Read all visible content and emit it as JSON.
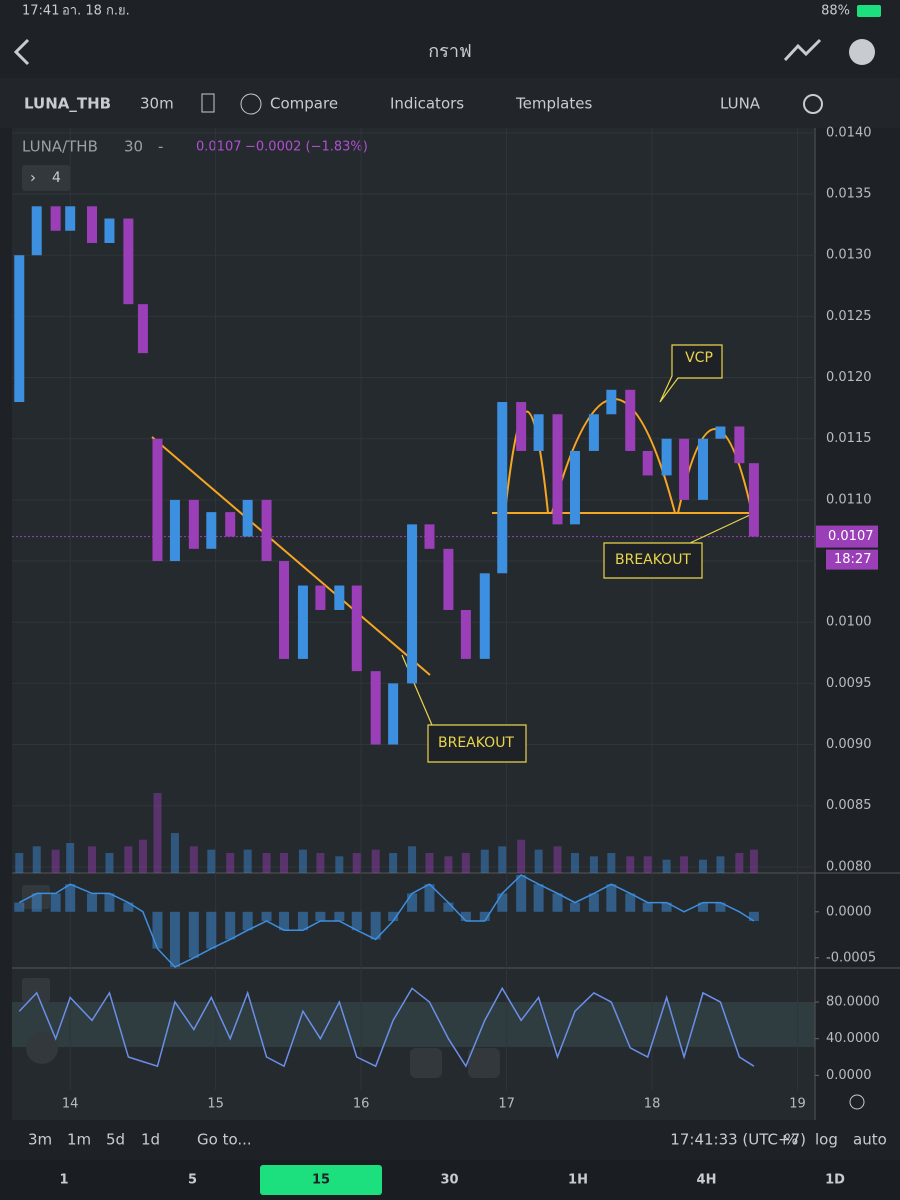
{
  "status_bar": {
    "time": "17:41",
    "date": "อา. 18 ก.ย.",
    "battery": "88%"
  },
  "nav": {
    "title": "กราฟ"
  },
  "toolbar": {
    "symbol": "LUNA_THB",
    "interval": "30m",
    "compare": "Compare",
    "indicators": "Indicators",
    "templates": "Templates",
    "layout": "LUNA"
  },
  "legend": {
    "symbol": "LUNA/THB",
    "interval": "30",
    "dash": "-",
    "price": "0.0107",
    "change": "−0.0002 (−1.83%)",
    "collapsed_count": "4"
  },
  "chart": {
    "type": "candlestick",
    "x": [
      13.65,
      13.77,
      13.9,
      14.0,
      14.15,
      14.27,
      14.4,
      14.5,
      14.6,
      14.72,
      14.85,
      14.97,
      15.1,
      15.22,
      15.35,
      15.47,
      15.6,
      15.72,
      15.85,
      15.97,
      16.1,
      16.22,
      16.35,
      16.47,
      16.6,
      16.72,
      16.85,
      16.97,
      17.1,
      17.22,
      17.35,
      17.47,
      17.6,
      17.72,
      17.85,
      17.97,
      18.1,
      18.22,
      18.35,
      18.47,
      18.6,
      18.7
    ],
    "open": [
      0.0118,
      0.013,
      0.0134,
      0.0132,
      0.0134,
      0.0131,
      0.0133,
      0.0126,
      0.0115,
      0.0105,
      0.011,
      0.0106,
      0.0109,
      0.0107,
      0.011,
      0.0105,
      0.0097,
      0.0103,
      0.0101,
      0.0103,
      0.0096,
      0.009,
      0.0095,
      0.0108,
      0.0106,
      0.0101,
      0.0097,
      0.0104,
      0.0118,
      0.0114,
      0.0117,
      0.0108,
      0.0114,
      0.0117,
      0.0119,
      0.0114,
      0.0112,
      0.0115,
      0.011,
      0.0115,
      0.0116,
      0.0113
    ],
    "close": [
      0.013,
      0.0134,
      0.0132,
      0.0134,
      0.0131,
      0.0133,
      0.0126,
      0.0122,
      0.0105,
      0.011,
      0.0106,
      0.0109,
      0.0107,
      0.011,
      0.0105,
      0.0097,
      0.0103,
      0.0101,
      0.0103,
      0.0096,
      0.009,
      0.0095,
      0.0108,
      0.0106,
      0.0101,
      0.0097,
      0.0104,
      0.0118,
      0.0114,
      0.0117,
      0.0108,
      0.0114,
      0.0117,
      0.0119,
      0.0114,
      0.0112,
      0.0115,
      0.011,
      0.0115,
      0.0116,
      0.0113,
      0.0107
    ],
    "up_color": "#3d8fe0",
    "down_color": "#9b3fb8",
    "xlim": [
      13.6,
      19.12
    ],
    "xticks": [
      14,
      15,
      16,
      17,
      18,
      19
    ],
    "ylim": [
      0.00795,
      0.01404
    ],
    "yticks": [
      {
        "value": 0.014,
        "label": "0.0140"
      },
      {
        "value": 0.0135,
        "label": "0.0135"
      },
      {
        "value": 0.013,
        "label": "0.0130"
      },
      {
        "value": 0.0125,
        "label": "0.0125"
      },
      {
        "value": 0.012,
        "label": "0.0120"
      },
      {
        "value": 0.0115,
        "label": "0.0115"
      },
      {
        "value": 0.011,
        "label": "0.0110"
      },
      {
        "value": 0.0105,
        "label": "0.0105"
      },
      {
        "value": 0.01,
        "label": "0.0100"
      },
      {
        "value": 0.0095,
        "label": "0.0095"
      },
      {
        "value": 0.009,
        "label": "0.0090"
      },
      {
        "value": 0.0085,
        "label": "0.0085"
      },
      {
        "value": 0.008,
        "label": "0.0080"
      }
    ],
    "last_price": {
      "value": 0.0107,
      "label": "0.0107"
    },
    "countdown": "18:27",
    "volume": [
      30,
      40,
      35,
      45,
      40,
      30,
      40,
      50,
      120,
      60,
      40,
      35,
      30,
      35,
      30,
      30,
      35,
      30,
      25,
      30,
      35,
      30,
      40,
      30,
      25,
      30,
      35,
      40,
      50,
      35,
      40,
      30,
      25,
      30,
      25,
      25,
      20,
      25,
      20,
      25,
      30,
      35
    ],
    "macd": {
      "values": [
        0.0001,
        0.0002,
        0.0002,
        0.0003,
        0.0002,
        0.0002,
        0.0001,
        0,
        -0.0004,
        -0.0006,
        -0.0005,
        -0.0004,
        -0.0003,
        -0.0002,
        -0.0001,
        -0.0002,
        -0.0002,
        -0.0001,
        -0.0001,
        -0.0002,
        -0.0003,
        -0.0001,
        0.0002,
        0.0003,
        0.0001,
        -0.0001,
        -0.0001,
        0.0002,
        0.0004,
        0.0003,
        0.0002,
        0.0001,
        0.0002,
        0.0003,
        0.0002,
        0.0001,
        0.0001,
        0,
        0.0001,
        0.0001,
        0,
        -0.0001
      ],
      "ylim": [
        -0.0006,
        0.0004
      ],
      "yticks": [
        {
          "value": 0,
          "label": "0.0000"
        },
        {
          "value": -0.0005,
          "label": "-0.0005"
        }
      ]
    },
    "stoch": {
      "values": [
        70,
        90,
        40,
        85,
        60,
        90,
        20,
        15,
        10,
        80,
        50,
        85,
        40,
        90,
        20,
        10,
        70,
        40,
        80,
        20,
        10,
        60,
        95,
        80,
        40,
        10,
        60,
        95,
        60,
        85,
        20,
        70,
        90,
        80,
        30,
        20,
        85,
        20,
        90,
        80,
        20,
        10
      ],
      "ylim": [
        -16,
        115
      ],
      "yticks": [
        {
          "value": 80,
          "label": "80.0000"
        },
        {
          "value": 40,
          "label": "40.0000"
        },
        {
          "value": 0,
          "label": "0.0000"
        }
      ]
    },
    "annotations": [
      "VCP",
      "BREAKOUT",
      "BREAKOUT"
    ]
  },
  "bottom_bar": {
    "ranges": [
      "3m",
      "1m",
      "5d",
      "1d"
    ],
    "goto": "Go to...",
    "clock": "17:41:33 (UTC+7)",
    "percent": "%",
    "log": "log",
    "auto": "auto"
  },
  "tabs": [
    "1",
    "5",
    "15",
    "30",
    "1H",
    "4H",
    "1D"
  ]
}
